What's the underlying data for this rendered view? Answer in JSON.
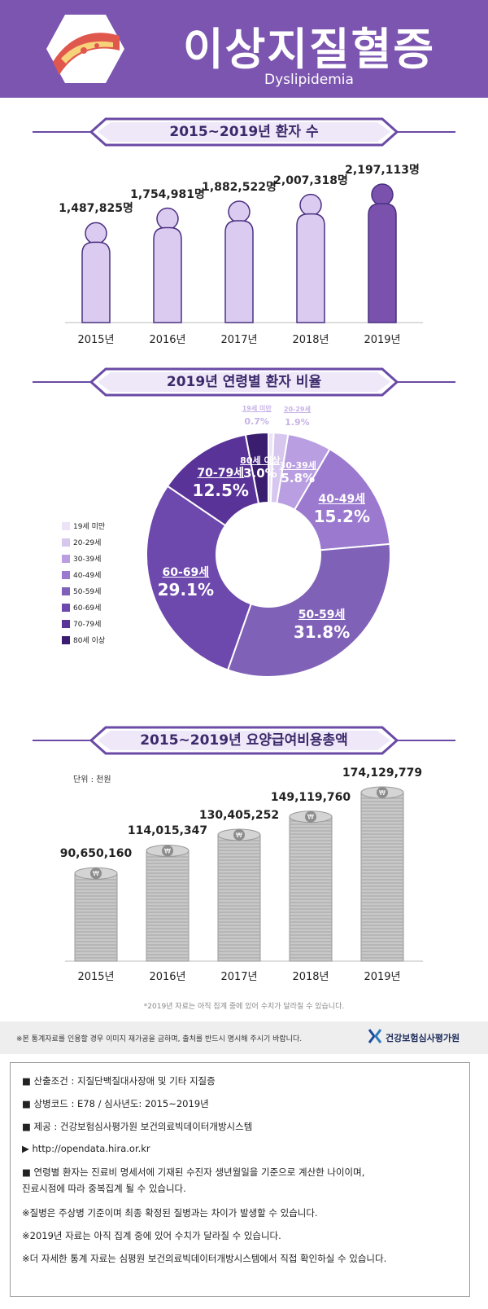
{
  "header": {
    "title": "이상지질혈증",
    "subtitle": "Dyslipidemia",
    "bg_color": "#7b55b0",
    "icon": "blood-vessel-icon"
  },
  "section_titles": {
    "patients": "2015~2019년 환자 수",
    "age": "2019년 연령별 환자 비율",
    "cost": "2015~2019년 요양급여비용총액"
  },
  "chart_data": [
    {
      "type": "bar",
      "categories": [
        "2015년",
        "2016년",
        "2017년",
        "2018년",
        "2019년"
      ],
      "values": [
        1487825,
        1754981,
        1882522,
        2007318,
        2197113
      ],
      "value_labels": [
        "1,487,825명",
        "1,754,981명",
        "1,882,522명",
        "2,007,318명",
        "2,197,113명"
      ],
      "title": "2015~2019년 환자 수",
      "mark": "person-icon",
      "colors": [
        "#dccbf1",
        "#dccbf1",
        "#dccbf1",
        "#dccbf1",
        "#7a52ae"
      ]
    },
    {
      "type": "pie",
      "title": "2019년 연령별 환자 비율",
      "donut": true,
      "categories": [
        "19세 미만",
        "20-29세",
        "30-39세",
        "40-49세",
        "50-59세",
        "60-69세",
        "70-79세",
        "80세 이상"
      ],
      "values": [
        0.7,
        1.9,
        5.8,
        15.2,
        31.8,
        29.1,
        12.5,
        3.0
      ],
      "value_labels": [
        "0.7%",
        "1.9%",
        "5.8%",
        "15.2%",
        "31.8%",
        "29.1%",
        "12.5%",
        "3.0%"
      ],
      "colors": [
        "#ece3f7",
        "#d7c6ee",
        "#b99ee1",
        "#9a79cf",
        "#8061b8",
        "#6d48ad",
        "#5a3399",
        "#3a1d6e"
      ],
      "legend_position": "left"
    },
    {
      "type": "bar",
      "title": "2015~2019년 요양급여비용총액",
      "unit_label": "단위 : 천원",
      "categories": [
        "2015년",
        "2016년",
        "2017년",
        "2018년",
        "2019년"
      ],
      "values": [
        90650160,
        114015347,
        130405252,
        149119760,
        174129779
      ],
      "value_labels": [
        "90,650,160",
        "114,015,347",
        "130,405,252",
        "149,119,760",
        "174,129,779"
      ],
      "mark": "coin-stack",
      "coin_symbol": "₩",
      "colors": [
        "#c8c8c8"
      ]
    }
  ],
  "footnote_2019": "*2019년 자료는 아직 집계 중에 있어 수치가 달라질 수 있습니다.",
  "copyright_notice": "※본 통계자료를 인용할 경우 이미지 재가공을 금하며, 출처를 반드시 명시해 주시기 바랍니다.",
  "org_name": "건강보험심사평가원",
  "notes": [
    "■ 산출조건 : 지질단백질대사장애 및 기타 지질증",
    "■ 상병코드 : E78 / 심사년도: 2015~2019년",
    "■ 제공 : 건강보험심사평가원 보건의료빅데이터개방시스템",
    "▶ http://opendata.hira.or.kr",
    "■ 연령별 환자는 진료비 명세서에 기재된 수진자 생년월일을 기준으로 계산한 나이이며,",
    "   진료시점에 따라 중복집계 될 수 있습니다.",
    "※질병은 주상병 기준이며 최종 확정된 질병과는 차이가 발생할 수 있습니다.",
    "※2019년 자료는 아직 집계 중에 있어 수치가 달라질 수 있습니다.",
    "※더 자세한 통계 자료는 심평원 보건의료빅데이터개방시스템에서 직접 확인하실 수 있습니다."
  ]
}
